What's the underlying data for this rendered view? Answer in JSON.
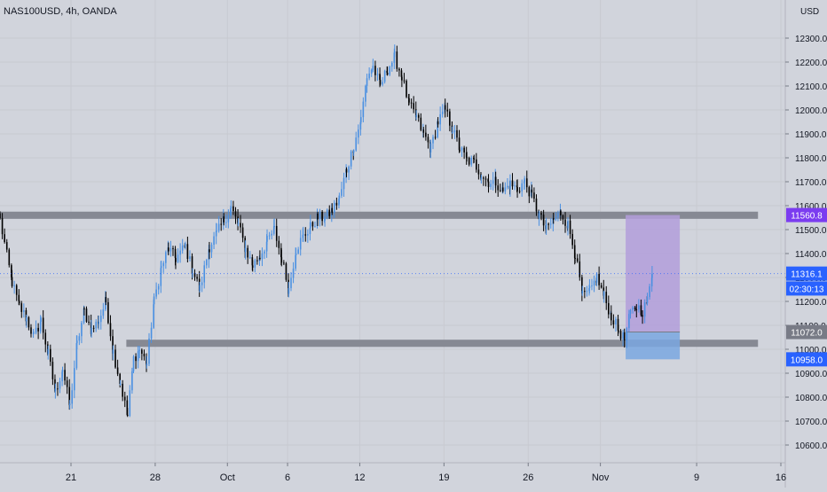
{
  "chart_data": {
    "type": "candlestick",
    "title": "NAS100USD, 4h, OANDA",
    "currency": "USD",
    "colors": {
      "background": "#d1d4dc",
      "up": "#4a90e2",
      "down": "#000000",
      "zone": "#868993",
      "target_box": "#b39ddb",
      "stop_box": "#7aa7e0",
      "last_price": "#2962ff",
      "zone_label": "#7b3cf0"
    },
    "y_axis": {
      "min": 10540,
      "max": 12380,
      "ticks": [
        "12300.0",
        "12200.0",
        "12100.0",
        "12000.0",
        "11900.0",
        "11800.0",
        "11700.0",
        "11600.0",
        "11500.0",
        "11400.0",
        "11300.0",
        "11200.0",
        "11100.0",
        "11000.0",
        "10900.0",
        "10800.0",
        "10700.0",
        "10600.0"
      ]
    },
    "x_axis": {
      "labels": [
        {
          "text": "21",
          "x": 12.9
        },
        {
          "text": "28",
          "x": 19.9
        },
        {
          "text": "Oct",
          "x": 25.9
        },
        {
          "text": "6",
          "x": 30.9
        },
        {
          "text": "12",
          "x": 36.9
        },
        {
          "text": "19",
          "x": 43.9
        },
        {
          "text": "26",
          "x": 50.9
        },
        {
          "text": "Nov",
          "x": 56.9
        },
        {
          "text": "9",
          "x": 64.9
        },
        {
          "text": "16",
          "x": 71.9
        }
      ]
    },
    "zones": [
      {
        "name": "resistance",
        "top": 11575,
        "bottom": 11545,
        "x_start": 7.0,
        "x_end": 70.0
      },
      {
        "name": "support",
        "top": 11040,
        "bottom": 11010,
        "x_start": 17.5,
        "x_end": 70.0
      }
    ],
    "position": {
      "entry": 11072.0,
      "target": 11560.8,
      "stop": 10958.0,
      "x_start": 59.0,
      "x_end": 63.5
    },
    "price_labels": [
      {
        "text": "11560.8",
        "value": 11560.8,
        "color": "#7b3cf0"
      },
      {
        "text": "11316.1",
        "value": 11316.1,
        "color": "#2962ff"
      },
      {
        "text": "02:30:13",
        "value": 11254,
        "color": "#2962ff"
      },
      {
        "text": "11072.0",
        "value": 11072.0,
        "color": "#787b86"
      },
      {
        "text": "10958.0",
        "value": 10958.0,
        "color": "#2962ff"
      }
    ],
    "last_price": 11316.1,
    "anchors": [
      [
        7.0,
        11540
      ],
      [
        8.0,
        11280
      ],
      [
        8.6,
        11180
      ],
      [
        9.2,
        11130
      ],
      [
        9.8,
        11050
      ],
      [
        10.4,
        11120
      ],
      [
        11.0,
        10980
      ],
      [
        11.6,
        10820
      ],
      [
        12.2,
        10920
      ],
      [
        12.8,
        10760
      ],
      [
        13.4,
        11020
      ],
      [
        14.0,
        11160
      ],
      [
        14.6,
        11080
      ],
      [
        15.2,
        11120
      ],
      [
        15.8,
        11200
      ],
      [
        16.4,
        10990
      ],
      [
        17.0,
        10860
      ],
      [
        17.6,
        10720
      ],
      [
        18.1,
        10960
      ],
      [
        18.6,
        11000
      ],
      [
        19.2,
        10940
      ],
      [
        19.8,
        11200
      ],
      [
        20.4,
        11340
      ],
      [
        21.0,
        11420
      ],
      [
        21.6,
        11380
      ],
      [
        22.4,
        11430
      ],
      [
        23.0,
        11330
      ],
      [
        23.6,
        11250
      ],
      [
        24.4,
        11430
      ],
      [
        25.0,
        11480
      ],
      [
        25.6,
        11540
      ],
      [
        26.2,
        11590
      ],
      [
        26.8,
        11520
      ],
      [
        27.4,
        11420
      ],
      [
        28.0,
        11350
      ],
      [
        28.6,
        11390
      ],
      [
        29.2,
        11450
      ],
      [
        29.8,
        11500
      ],
      [
        30.4,
        11380
      ],
      [
        31.0,
        11250
      ],
      [
        31.6,
        11420
      ],
      [
        32.2,
        11470
      ],
      [
        32.8,
        11510
      ],
      [
        33.4,
        11550
      ],
      [
        34.0,
        11550
      ],
      [
        34.6,
        11580
      ],
      [
        35.2,
        11630
      ],
      [
        35.8,
        11750
      ],
      [
        36.4,
        11850
      ],
      [
        37.0,
        11960
      ],
      [
        37.5,
        12140
      ],
      [
        38.0,
        12180
      ],
      [
        38.6,
        12100
      ],
      [
        39.2,
        12170
      ],
      [
        39.8,
        12220
      ],
      [
        40.4,
        12140
      ],
      [
        41.0,
        12020
      ],
      [
        41.6,
        11970
      ],
      [
        42.2,
        11900
      ],
      [
        42.8,
        11840
      ],
      [
        43.4,
        11950
      ],
      [
        44.0,
        12000
      ],
      [
        44.6,
        11920
      ],
      [
        45.2,
        11840
      ],
      [
        45.8,
        11790
      ],
      [
        46.4,
        11780
      ],
      [
        47.0,
        11730
      ],
      [
        47.6,
        11700
      ],
      [
        48.2,
        11700
      ],
      [
        48.8,
        11660
      ],
      [
        49.4,
        11690
      ],
      [
        50.0,
        11670
      ],
      [
        50.6,
        11700
      ],
      [
        51.2,
        11640
      ],
      [
        51.8,
        11560
      ],
      [
        52.4,
        11500
      ],
      [
        53.0,
        11540
      ],
      [
        53.6,
        11570
      ],
      [
        54.2,
        11520
      ],
      [
        54.8,
        11400
      ],
      [
        55.4,
        11220
      ],
      [
        56.0,
        11240
      ],
      [
        56.6,
        11300
      ],
      [
        57.2,
        11220
      ],
      [
        57.8,
        11140
      ],
      [
        58.4,
        11080
      ],
      [
        58.9,
        11040
      ],
      [
        59.4,
        11150
      ],
      [
        59.9,
        11180
      ],
      [
        60.4,
        11160
      ],
      [
        60.8,
        11200
      ],
      [
        61.2,
        11316
      ]
    ]
  }
}
